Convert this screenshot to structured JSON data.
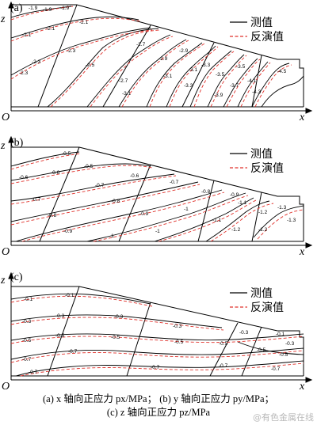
{
  "panels": [
    {
      "id": "a",
      "tag": "(a)",
      "axis_z": "z",
      "axis_x": "x",
      "origin": "O",
      "legend": {
        "measured": "测值",
        "inverted": "反演值"
      },
      "labels": [
        "-1.9",
        "-1.9",
        "-1.9",
        "-2.1",
        "-2.1",
        "-2.1",
        "-2.3",
        "-2.3",
        "-2.3",
        "-2.5",
        "-2.7",
        "-2.7",
        "-2.9",
        "-3.1",
        "-3.1",
        "-3.3",
        "-3.5",
        "-3.7",
        "-3.9",
        "-4.1",
        "-4.3",
        "-4.5",
        "-2.9",
        "-3.1",
        "-3.3",
        "-3.5"
      ]
    },
    {
      "id": "b",
      "tag": "(b)",
      "axis_z": "z",
      "axis_x": "x",
      "origin": "O",
      "legend": {
        "measured": "测值",
        "inverted": "反演值"
      },
      "labels": [
        "-0.5",
        "-0.6",
        "-0.6",
        "-0.5",
        "-0.7",
        "-0.7",
        "-0.6",
        "-0.8",
        "-0.8",
        "-0.7",
        "-0.9",
        "-0.9",
        "-0.8",
        "-1",
        "-1",
        "-0.9",
        "-1.1",
        "-1.1",
        "-1.2",
        "-1.2",
        "-1.3",
        "-1.3",
        "-1.2",
        "-1"
      ]
    },
    {
      "id": "c",
      "tag": "(c)",
      "axis_z": "z",
      "axis_x": "x",
      "origin": "O",
      "legend": {
        "measured": "测值",
        "inverted": "反演值"
      },
      "labels": [
        "-0.1",
        "-0.1",
        "-0.3",
        "-0.3",
        "-0.3",
        "-0.5",
        "-0.5",
        "-0.5",
        "-0.7",
        "-0.7",
        "-0.7",
        "-0.3",
        "-0.5",
        "-0.5",
        "-0.7",
        "-0.7",
        "-0.3",
        "-0.5",
        "-0.1",
        "-0.3",
        "-0.5",
        "-0.7"
      ]
    }
  ],
  "caption": {
    "line1": "(a) x 轴向正应力 px/MPa； (b) y 轴向正应力 py/MPa；",
    "line2": "(c) z 轴向正应力 pz/MPa"
  },
  "watermark": "@有色金属在线",
  "colors": {
    "measured": "#000000",
    "inverted": "#e0302a"
  }
}
